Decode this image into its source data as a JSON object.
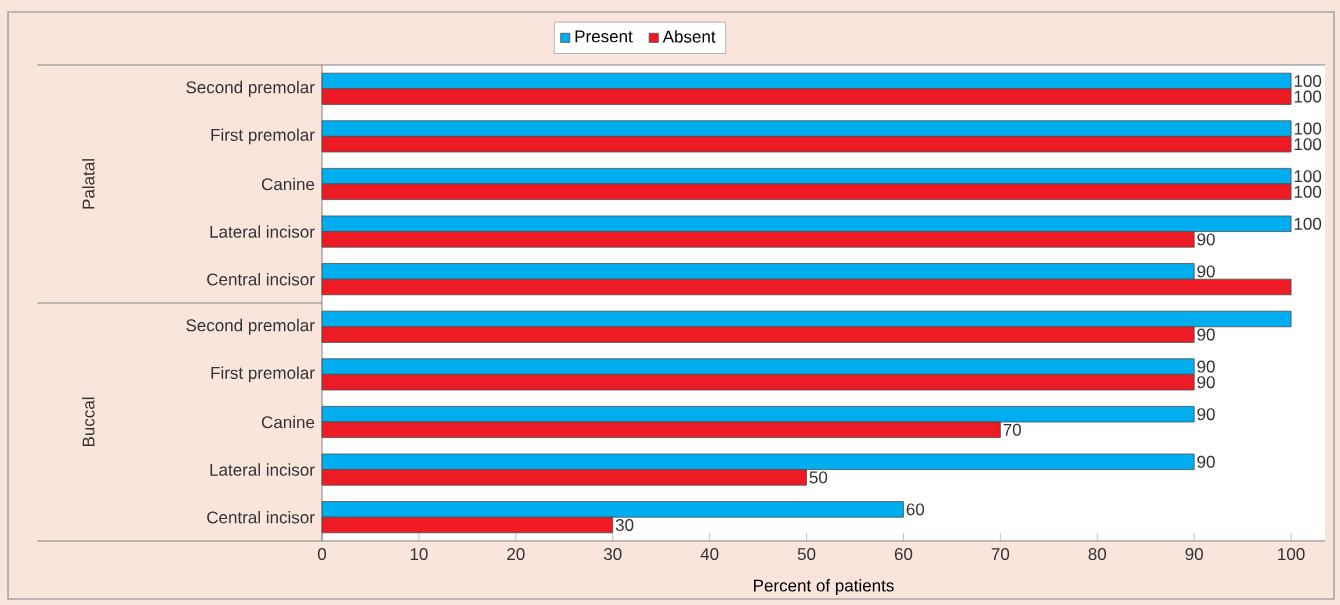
{
  "chart_data": {
    "type": "bar",
    "orientation": "horizontal",
    "xlabel": "Percent of patients",
    "categories": [
      "Second premolar",
      "First premolar",
      "Canine",
      "Lateral incisor",
      "Central incisor",
      "Second premolar",
      "First premolar",
      "Canine",
      "Lateral incisor",
      "Central incisor"
    ],
    "series": [
      {
        "name": "Present",
        "color": "#00aeef",
        "values": [
          100,
          100,
          100,
          100,
          90,
          100,
          90,
          90,
          90,
          60
        ],
        "value_labels": [
          "100",
          "100",
          "100",
          "100",
          "90",
          null,
          "90",
          "90",
          "90",
          "60"
        ]
      },
      {
        "name": "Absent",
        "color": "#ed1c24",
        "values": [
          100,
          100,
          100,
          90,
          100,
          90,
          90,
          70,
          50,
          30
        ],
        "value_labels": [
          "100",
          "100",
          "100",
          "90",
          null,
          "90",
          "90",
          "70",
          "50",
          "30"
        ]
      }
    ],
    "xlim": [
      0,
      103.5
    ],
    "xticks": [
      0,
      10,
      20,
      30,
      40,
      50,
      60,
      70,
      80,
      90,
      100
    ],
    "legend": "top",
    "grid": false,
    "annotations": [
      "Palatal",
      "Buccal"
    ]
  }
}
